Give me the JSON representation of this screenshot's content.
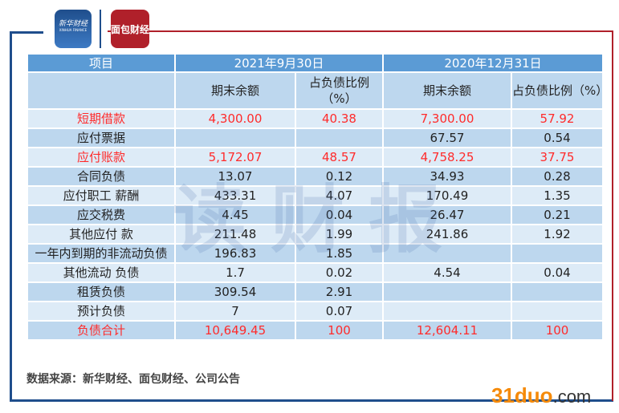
{
  "logos": {
    "xinhua": "新华财经",
    "xinhua_en": "XINHUA FINANCE",
    "mianbao": "面包财经"
  },
  "table": {
    "header": [
      "项目",
      "2021年9月30日",
      "2020年12月31日"
    ],
    "subheader": [
      "",
      "期末余额",
      "占负债比例（%）",
      "期末余额",
      "占负债比例（%）"
    ],
    "rows": [
      {
        "item": "短期借款",
        "a": "4,300.00",
        "b": "40.38",
        "c": "7,300.00",
        "d": "57.92",
        "highlight": true
      },
      {
        "item": "应付票据",
        "a": "",
        "b": "",
        "c": "67.57",
        "d": "0.54"
      },
      {
        "item": "应付账款",
        "a": "5,172.07",
        "b": "48.57",
        "c": "4,758.25",
        "d": "37.75",
        "highlight": true
      },
      {
        "item": "合同负债",
        "a": "13.07",
        "b": "0.12",
        "c": "34.93",
        "d": "0.28"
      },
      {
        "item": "应付职工 薪酬",
        "a": "433.31",
        "b": "4.07",
        "c": "170.49",
        "d": "1.35"
      },
      {
        "item": "应交税费",
        "a": "4.45",
        "b": "0.04",
        "c": "26.47",
        "d": "0.21"
      },
      {
        "item": "其他应付 款",
        "a": "211.48",
        "b": "1.99",
        "c": "241.86",
        "d": "1.92"
      },
      {
        "item": "一年内到期的非流动负债",
        "a": "196.83",
        "b": "1.85",
        "c": "",
        "d": ""
      },
      {
        "item": "其他流动 负债",
        "a": "1.7",
        "b": "0.02",
        "c": "4.54",
        "d": "0.04"
      },
      {
        "item": "租赁负债",
        "a": "309.54",
        "b": "2.91",
        "c": "",
        "d": ""
      },
      {
        "item": "预计负债",
        "a": "7",
        "b": "0.07",
        "c": "",
        "d": ""
      },
      {
        "item": "负债合计",
        "a": "10,649.45",
        "b": "100",
        "c": "12,604.11",
        "d": "100",
        "highlight": true
      }
    ]
  },
  "watermark": "读财报",
  "source": "数据来源：新华财经、面包财经、公司公告",
  "site": {
    "main": "31duo",
    ".com": ".com"
  },
  "colors": {
    "header": "#5b9bd5",
    "highlight": "#ff2b2b",
    "frame_blue": "#1f4e8c",
    "frame_red": "#b0202a"
  }
}
